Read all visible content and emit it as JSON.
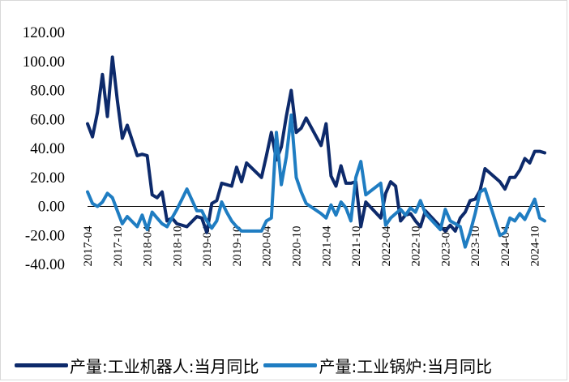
{
  "chart_data": {
    "type": "line",
    "title": "",
    "xlabel": "",
    "ylabel": "",
    "ylim": [
      -40,
      120
    ],
    "yticks": [
      "120.00",
      "100.00",
      "80.00",
      "60.00",
      "40.00",
      "20.00",
      "0.00",
      "-20.00",
      "-40.00"
    ],
    "x_tick_labels": [
      "2017-04",
      "2017-10",
      "2018-04",
      "2018-10",
      "2019-04",
      "2019-10",
      "2020-04",
      "2020-10",
      "2021-04",
      "2021-10",
      "2022-04",
      "2022-10",
      "2023-04",
      "2023-10",
      "2024-04",
      "2024-10"
    ],
    "x_start": "2017-04",
    "x_end": "2024-12",
    "grid": false,
    "legend_position": "bottom",
    "series": [
      {
        "name": "产量:工业机器人:当月同比",
        "color": "#0d2a6b",
        "x": [
          "2017-04",
          "2017-05",
          "2017-06",
          "2017-07",
          "2017-08",
          "2017-09",
          "2017-10",
          "2017-11",
          "2017-12",
          "2018-02",
          "2018-03",
          "2018-04",
          "2018-05",
          "2018-06",
          "2018-07",
          "2018-08",
          "2018-09",
          "2018-10",
          "2018-11",
          "2018-12",
          "2019-02",
          "2019-03",
          "2019-04",
          "2019-05",
          "2019-06",
          "2019-07",
          "2019-08",
          "2019-09",
          "2019-10",
          "2019-11",
          "2019-12",
          "2020-03",
          "2020-04",
          "2020-05",
          "2020-06",
          "2020-07",
          "2020-08",
          "2020-09",
          "2020-10",
          "2020-11",
          "2020-12",
          "2021-03",
          "2021-04",
          "2021-05",
          "2021-06",
          "2021-07",
          "2021-08",
          "2021-09",
          "2021-10",
          "2021-11",
          "2021-12",
          "2022-03",
          "2022-04",
          "2022-05",
          "2022-06",
          "2022-07",
          "2022-08",
          "2022-09",
          "2022-10",
          "2022-11",
          "2022-12",
          "2023-03",
          "2023-04",
          "2023-05",
          "2023-06",
          "2023-07",
          "2023-08",
          "2023-09",
          "2023-10",
          "2023-11",
          "2023-12",
          "2024-03",
          "2024-04",
          "2024-05",
          "2024-06",
          "2024-07",
          "2024-08",
          "2024-09",
          "2024-10",
          "2024-11",
          "2024-12"
        ],
        "values": [
          57,
          48,
          65,
          91,
          62,
          103,
          73,
          47,
          56,
          35,
          36,
          35,
          8,
          6,
          10,
          -10,
          -8,
          -12,
          -13,
          -14,
          -7,
          -8,
          -18,
          2,
          4,
          16,
          15,
          14,
          27,
          17,
          30,
          20,
          35,
          51,
          32,
          41,
          62,
          80,
          51,
          54,
          61,
          42,
          57,
          21,
          14,
          28,
          16,
          16,
          17,
          -14,
          3,
          -8,
          9,
          17,
          14,
          -10,
          -6,
          -5,
          -10,
          -14,
          -3,
          -14,
          -17,
          -13,
          -17,
          -8,
          -4,
          4,
          5,
          11,
          26,
          17,
          12,
          20,
          20,
          25,
          33,
          30,
          38,
          38,
          37
        ]
      },
      {
        "name": "产量:工业锅炉:当月同比",
        "color": "#1f7dc2",
        "x": [
          "2017-04",
          "2017-05",
          "2017-06",
          "2017-07",
          "2017-08",
          "2017-09",
          "2017-10",
          "2017-11",
          "2017-12",
          "2018-02",
          "2018-03",
          "2018-04",
          "2018-05",
          "2018-06",
          "2018-07",
          "2018-08",
          "2018-09",
          "2018-10",
          "2018-11",
          "2018-12",
          "2019-02",
          "2019-03",
          "2019-04",
          "2019-05",
          "2019-06",
          "2019-07",
          "2019-08",
          "2019-09",
          "2019-10",
          "2019-11",
          "2019-12",
          "2020-03",
          "2020-04",
          "2020-05",
          "2020-06",
          "2020-07",
          "2020-08",
          "2020-09",
          "2020-10",
          "2020-11",
          "2020-12",
          "2021-03",
          "2021-04",
          "2021-05",
          "2021-06",
          "2021-07",
          "2021-08",
          "2021-09",
          "2021-10",
          "2021-11",
          "2021-12",
          "2022-03",
          "2022-04",
          "2022-05",
          "2022-06",
          "2022-07",
          "2022-08",
          "2022-09",
          "2022-10",
          "2022-11",
          "2022-12",
          "2023-03",
          "2023-04",
          "2023-05",
          "2023-06",
          "2023-07",
          "2023-08",
          "2023-09",
          "2023-10",
          "2023-11",
          "2023-12",
          "2024-03",
          "2024-04",
          "2024-05",
          "2024-06",
          "2024-07",
          "2024-08",
          "2024-09",
          "2024-10",
          "2024-11",
          "2024-12"
        ],
        "values": [
          10,
          2,
          0,
          3,
          9,
          6,
          -3,
          -12,
          -7,
          -14,
          -6,
          -16,
          -4,
          -8,
          -12,
          -14,
          -8,
          -2,
          5,
          12,
          -3,
          -3,
          -10,
          -15,
          -10,
          3,
          -4,
          -10,
          -14,
          -17,
          -17,
          -17,
          -10,
          -8,
          51,
          15,
          34,
          63,
          20,
          10,
          2,
          -5,
          -8,
          1,
          -6,
          3,
          -1,
          -10,
          20,
          31,
          8,
          16,
          -13,
          -8,
          -5,
          -2,
          -6,
          -1,
          -4,
          4,
          -5,
          -16,
          -2,
          -10,
          -12,
          -14,
          -28,
          -18,
          -5,
          10,
          12,
          -20,
          -18,
          -8,
          -10,
          -5,
          -9,
          -2,
          5,
          -8,
          -10
        ]
      }
    ]
  }
}
